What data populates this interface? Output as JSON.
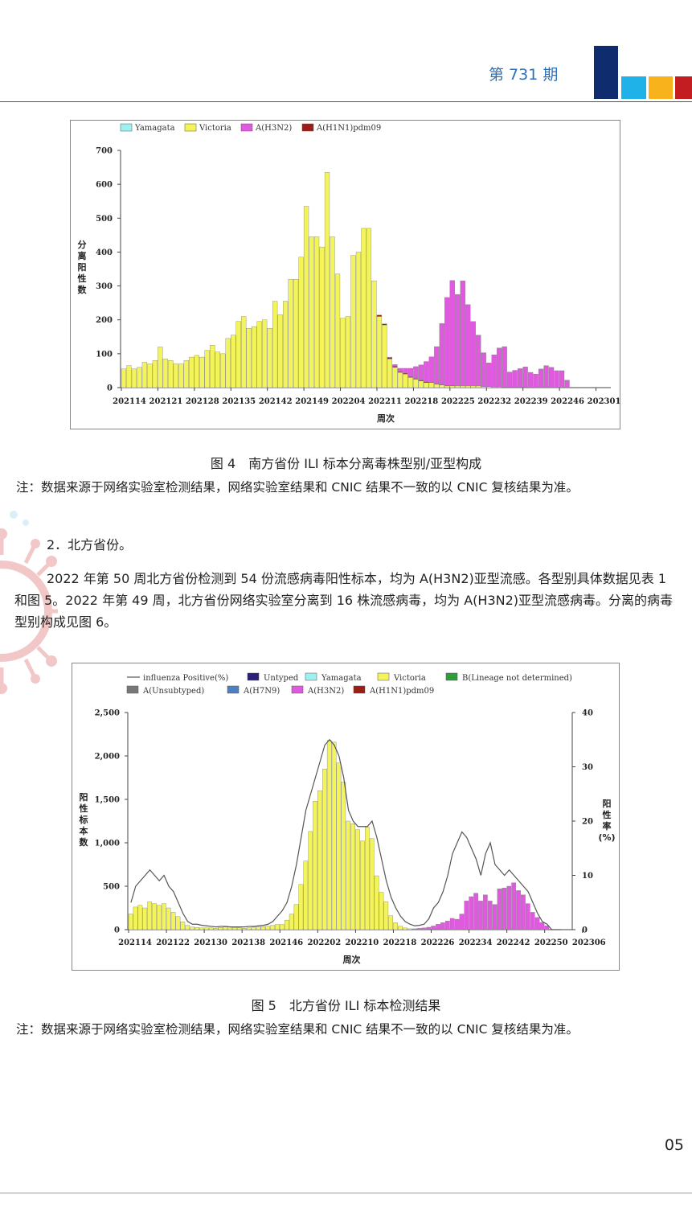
{
  "header": {
    "issue": "第 731 期",
    "logo_colors": [
      "#0f2c6e",
      "#1fb2e8",
      "#f7b21c",
      "#c41d21"
    ]
  },
  "fig4": {
    "caption": "图 4　南方省份 ILI 标本分离毒株型别/亚型构成",
    "note": "注：数据来源于网络实验室检测结果，网络实验室结果和 CNIC 结果不一致的以 CNIC 复核结果为准。",
    "ylabel_chars": [
      "分",
      "离",
      "阳",
      "性",
      "数"
    ],
    "xlabel": "周次",
    "chart_data": {
      "type": "bar",
      "stacked": true,
      "legend": [
        "Yamagata",
        "Victoria",
        "A(H3N2)",
        "A(H1N1)pdm09"
      ],
      "colors": {
        "Yamagata": "#9ff0f0",
        "Victoria": "#f3f35a",
        "A(H3N2)": "#e05ae0",
        "A(H1N1)pdm09": "#9b1d16"
      },
      "ylim": [
        0,
        700
      ],
      "yticks": [
        0,
        100,
        200,
        300,
        400,
        500,
        600,
        700
      ],
      "xticklabels": [
        "202114",
        "202121",
        "202128",
        "202135",
        "202142",
        "202149",
        "202204",
        "202211",
        "202218",
        "202225",
        "202232",
        "202239",
        "202246",
        "202301"
      ],
      "n_weeks": 92,
      "victoria": [
        55,
        65,
        55,
        60,
        75,
        70,
        80,
        120,
        85,
        80,
        70,
        70,
        80,
        90,
        95,
        90,
        110,
        125,
        105,
        100,
        145,
        155,
        195,
        210,
        175,
        180,
        195,
        200,
        175,
        255,
        215,
        255,
        320,
        320,
        385,
        535,
        445,
        445,
        415,
        635,
        445,
        335,
        205,
        210,
        390,
        400,
        470,
        470,
        315,
        210,
        185,
        85,
        60,
        45,
        40,
        30,
        25,
        20,
        15,
        15,
        10,
        8,
        5,
        5,
        5,
        5,
        5,
        5,
        5,
        3,
        3,
        2,
        2,
        1,
        1,
        1,
        1,
        1,
        0,
        0,
        0,
        0,
        0,
        0,
        0,
        0,
        0,
        0,
        0,
        0,
        0,
        0
      ],
      "h3n2": [
        0,
        0,
        0,
        0,
        0,
        0,
        0,
        0,
        0,
        0,
        0,
        0,
        0,
        0,
        0,
        0,
        0,
        0,
        0,
        0,
        0,
        0,
        0,
        0,
        0,
        0,
        0,
        0,
        0,
        0,
        0,
        0,
        0,
        0,
        0,
        0,
        0,
        0,
        0,
        0,
        0,
        0,
        0,
        0,
        0,
        0,
        0,
        0,
        0,
        0,
        0,
        2,
        5,
        10,
        15,
        25,
        35,
        45,
        60,
        75,
        110,
        180,
        260,
        310,
        270,
        310,
        240,
        190,
        150,
        100,
        70,
        95,
        115,
        120,
        45,
        50,
        55,
        60,
        45,
        40,
        55,
        65,
        60,
        50,
        50,
        22,
        0,
        0,
        0,
        0,
        0,
        0
      ],
      "h1n1": [
        0,
        0,
        0,
        0,
        0,
        0,
        0,
        0,
        0,
        0,
        0,
        0,
        0,
        0,
        0,
        0,
        0,
        0,
        0,
        0,
        0,
        0,
        0,
        0,
        0,
        0,
        0,
        0,
        0,
        0,
        0,
        0,
        0,
        0,
        0,
        0,
        0,
        0,
        0,
        0,
        0,
        0,
        0,
        0,
        0,
        0,
        0,
        0,
        0,
        4,
        3,
        3,
        3,
        2,
        2,
        2,
        2,
        2,
        2,
        1,
        1,
        1,
        1,
        1,
        0,
        0,
        0,
        0,
        0,
        0,
        0,
        0,
        0,
        0,
        0,
        0,
        0,
        0,
        0,
        0,
        0,
        0,
        0,
        0,
        0,
        0,
        0,
        0,
        0,
        0,
        0,
        0
      ]
    }
  },
  "section2": {
    "heading": "2．北方省份。",
    "para": "2022 年第 50 周北方省份检测到 54 份流感病毒阳性标本，均为 A(H3N2)亚型流感。各型别具体数据见表 1 和图 5。2022 年第 49 周，北方省份网络实验室分离到 16 株流感病毒，均为 A(H3N2)亚型流感病毒。分离的病毒型别构成见图 6。"
  },
  "fig5": {
    "caption": "图 5　北方省份 ILI 标本检测结果",
    "note": "注：数据来源于网络实验室检测结果，网络实验室结果和 CNIC 结果不一致的以 CNIC 复核结果为准。",
    "ylabel_chars": [
      "阳",
      "性",
      "标",
      "本",
      "数"
    ],
    "y2label_chars": [
      "阳",
      "性",
      "率",
      "(%)"
    ],
    "xlabel": "周次",
    "chart_data": {
      "type": "bar",
      "stacked": true,
      "legend_row1": [
        "influenza Positive(%)",
        "Untyped",
        "Yamagata",
        "Victoria",
        "B(Lineage not determined)"
      ],
      "legend_row2": [
        "A(Unsubtyped)",
        "A(H7N9)",
        "A(H3N2)",
        "A(H1N1)pdm09"
      ],
      "colors": {
        "influenza Positive(%)": "#555555",
        "Untyped": "#2a1f7a",
        "Yamagata": "#9ff0f0",
        "Victoria": "#f3f35a",
        "B(Lineage not determined)": "#2e9e3a",
        "A(Unsubtyped)": "#777777",
        "A(H7N9)": "#4f7fbf",
        "A(H3N2)": "#e05ae0",
        "A(H1N1)pdm09": "#9b1d16"
      },
      "ylim": [
        0,
        2500
      ],
      "yticks": [
        0,
        500,
        1000,
        1500,
        2000,
        2500
      ],
      "yticklabels": [
        "0",
        "500",
        "1,000",
        "1,500",
        "2,000",
        "2,500"
      ],
      "y2lim": [
        0,
        40
      ],
      "y2ticks": [
        0,
        10,
        20,
        30,
        40
      ],
      "xticklabels": [
        "202114",
        "202122",
        "202130",
        "202138",
        "202146",
        "202202",
        "202210",
        "202218",
        "202226",
        "202234",
        "202242",
        "202250",
        "202306"
      ],
      "n_weeks": 92,
      "victoria": [
        180,
        260,
        280,
        250,
        320,
        300,
        280,
        300,
        250,
        200,
        150,
        90,
        50,
        30,
        25,
        20,
        20,
        20,
        15,
        25,
        30,
        30,
        25,
        20,
        15,
        20,
        30,
        30,
        35,
        40,
        50,
        60,
        60,
        110,
        180,
        290,
        520,
        790,
        1130,
        1480,
        1600,
        1850,
        2180,
        2160,
        1920,
        1700,
        1250,
        1220,
        1150,
        1020,
        1180,
        1050,
        620,
        430,
        320,
        160,
        80,
        40,
        20,
        10,
        5,
        5,
        5,
        3,
        2,
        2,
        0,
        0,
        0,
        0,
        0,
        0,
        0,
        0,
        0,
        0,
        0,
        0,
        0,
        0,
        0,
        0,
        0,
        0,
        0,
        0,
        0,
        0,
        0,
        0,
        0,
        0
      ],
      "h3n2": [
        0,
        0,
        0,
        0,
        0,
        0,
        0,
        0,
        0,
        0,
        0,
        0,
        0,
        0,
        0,
        0,
        0,
        0,
        0,
        0,
        0,
        0,
        0,
        0,
        0,
        0,
        0,
        0,
        0,
        0,
        0,
        0,
        0,
        0,
        0,
        0,
        0,
        0,
        0,
        0,
        0,
        0,
        0,
        0,
        0,
        0,
        0,
        0,
        0,
        0,
        0,
        0,
        0,
        0,
        0,
        0,
        0,
        0,
        0,
        0,
        5,
        10,
        15,
        25,
        40,
        60,
        80,
        100,
        130,
        120,
        180,
        330,
        380,
        420,
        330,
        400,
        330,
        290,
        470,
        480,
        500,
        540,
        450,
        400,
        300,
        200,
        140,
        80,
        45,
        0,
        0,
        0
      ],
      "positive_pct": [
        5,
        8,
        9,
        10,
        11,
        10,
        9,
        10,
        8,
        7,
        5,
        3,
        1.5,
        1,
        1,
        0.8,
        0.7,
        0.6,
        0.5,
        0.6,
        0.6,
        0.5,
        0.5,
        0.5,
        0.5,
        0.6,
        0.6,
        0.7,
        0.8,
        1,
        1.5,
        2.5,
        3.5,
        5,
        8,
        12,
        17,
        22,
        25,
        28,
        31,
        34,
        35,
        34,
        32,
        28,
        22,
        20,
        19,
        19,
        19,
        20,
        17,
        13,
        9,
        6,
        4,
        2.5,
        1.5,
        1,
        0.7,
        0.8,
        1,
        2,
        4,
        5,
        7,
        10,
        14,
        16,
        18,
        17,
        15,
        13,
        10,
        14,
        16,
        12,
        11,
        10,
        11,
        10,
        9,
        8,
        7,
        5,
        3,
        1.5,
        1,
        0,
        0,
        0
      ]
    }
  },
  "page_number": "05"
}
